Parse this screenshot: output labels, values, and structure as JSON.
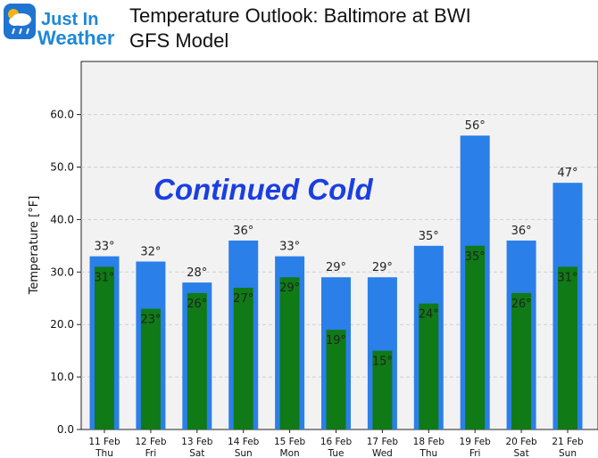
{
  "header": {
    "logo_line1": "Just In",
    "logo_line2": "Weather",
    "title_line1": "Temperature Outlook: Baltimore at BWI",
    "title_line2": "GFS Model"
  },
  "annotation": "Continued Cold",
  "chart_data": {
    "type": "bar",
    "title": "Temperature Outlook: Baltimore at BWI",
    "subtitle": "GFS Model",
    "xlabel": "",
    "ylabel": "Temperature [°F]",
    "ylim": [
      0,
      70
    ],
    "yticks": [
      "0.0",
      "10.0",
      "20.0",
      "30.0",
      "40.0",
      "50.0",
      "60.0"
    ],
    "grid": true,
    "categories": [
      "11 Feb",
      "12 Feb",
      "13 Feb",
      "14 Feb",
      "15 Feb",
      "16 Feb",
      "17 Feb",
      "18 Feb",
      "19 Feb",
      "20 Feb",
      "21 Feb"
    ],
    "days": [
      "Thu",
      "Fri",
      "Sat",
      "Sun",
      "Mon",
      "Tue",
      "Wed",
      "Thu",
      "Fri",
      "Sat",
      "Sun"
    ],
    "series": [
      {
        "values": [
          33,
          32,
          28,
          36,
          33,
          29,
          29,
          35,
          56,
          36,
          47
        ],
        "labels": [
          "33°",
          "32°",
          "28°",
          "36°",
          "33°",
          "29°",
          "29°",
          "35°",
          "56°",
          "36°",
          "47°"
        ],
        "color": "#2b7fe8"
      },
      {
        "values": [
          31,
          23,
          26,
          27,
          29,
          19,
          15,
          24,
          35,
          26,
          31
        ],
        "labels": [
          "31°",
          "23°",
          "26°",
          "27°",
          "29°",
          "19°",
          "15°",
          "24°",
          "35°",
          "26°",
          "31°"
        ],
        "color": "#0f7a16"
      }
    ],
    "colors": {
      "panel_bg": "#f2f2f2",
      "grid": "#cfcfcf"
    }
  }
}
